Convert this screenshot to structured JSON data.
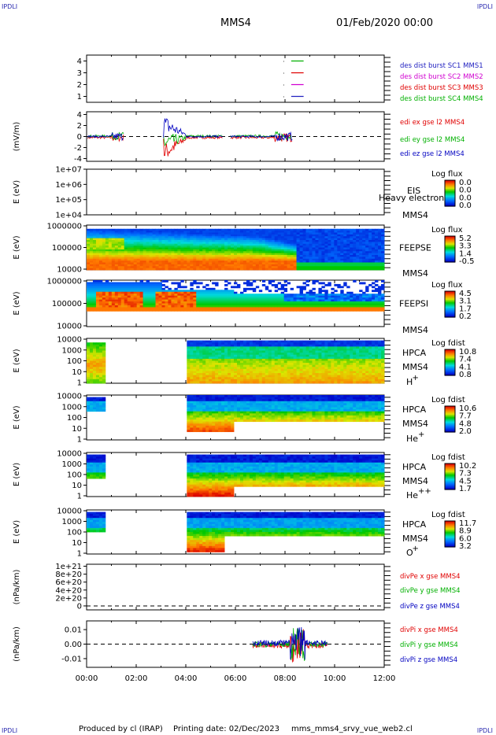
{
  "header": {
    "corner_left_top": "IPDLI",
    "corner_right_top": "IPDLI",
    "corner_left_bottom": "IPDLI",
    "corner_right_bottom": "IPDLI",
    "title": "MMS4",
    "date": "01/Feb/2020 00:00"
  },
  "footer": {
    "producer": "Produced by cl (IRAP)",
    "printing": "Printing date: 02/Dec/2023",
    "script": "mms_mms4_srvy_vue_web2.cl"
  },
  "colors": {
    "red": "#e00000",
    "green": "#00c000",
    "blue": "#0000c0",
    "magenta": "#d000d0",
    "green_legend": "#00b000",
    "purple": "#8000c0"
  },
  "chart_data": [
    {
      "type": "line",
      "panel": "burst",
      "yticks": [
        "4",
        "3",
        "2",
        "1"
      ],
      "ylim": [
        0.5,
        4.5
      ],
      "legend": [
        {
          "label": "des dist burst SC1 MMS1",
          "color": "#2020c0"
        },
        {
          "label": "des dist burst SC2 MMS2",
          "color": "#d000d0"
        },
        {
          "label": "des dist burst SC3 MMS3",
          "color": "#e00000"
        },
        {
          "label": "des dist burst SC4 MMS4",
          "color": "#00b000"
        }
      ],
      "series": [
        {
          "name": "des dist burst SC1 MMS1",
          "x": [
            "08:15",
            "08:45"
          ],
          "values": [
            1,
            1
          ]
        },
        {
          "name": "des dist burst SC2 MMS2",
          "x": [
            "08:15",
            "08:45"
          ],
          "values": [
            2,
            2
          ]
        },
        {
          "name": "des dist burst SC3 MMS3",
          "x": [
            "08:15",
            "08:45"
          ],
          "values": [
            3,
            3
          ]
        },
        {
          "name": "des dist burst SC4 MMS4",
          "x": [
            "08:15",
            "08:45"
          ],
          "values": [
            4,
            4
          ]
        }
      ]
    },
    {
      "type": "line",
      "panel": "efield",
      "ylabel": "(mV/m)",
      "yticks": [
        "4",
        "2",
        "0",
        "-2",
        "-4"
      ],
      "ylim": [
        -4.5,
        4.5
      ],
      "legend": [
        {
          "label": "edi ex gse l2 MMS4",
          "color": "#e00000"
        },
        {
          "label": "edi ey gse l2 MMS4",
          "color": "#00b000"
        },
        {
          "label": "edi ez gse l2 MMS4",
          "color": "#0000c0"
        }
      ]
    },
    {
      "type": "heatmap",
      "panel": "EIS",
      "ylabel": "E (eV)",
      "yticks": [
        "1e+07",
        "1e+06",
        "1e+05",
        "1e+04"
      ],
      "inst": "EIS",
      "sc": "MMS4",
      "extra": "Heavy electron to",
      "cb_title": "Log flux",
      "cb_ticks": [
        "0.0",
        "0.0",
        "0.0",
        "0.0"
      ]
    },
    {
      "type": "heatmap",
      "panel": "FEEPSE",
      "ylabel": "E (eV)",
      "yticks": [
        "1000000",
        "100000",
        "10000"
      ],
      "inst": "FEEPSE",
      "sc": "MMS4",
      "cb_title": "Log flux",
      "cb_ticks": [
        "5.2",
        "3.3",
        "1.4",
        "-0.5"
      ]
    },
    {
      "type": "heatmap",
      "panel": "FEEPSI",
      "ylabel": "E (eV)",
      "yticks": [
        "1000000",
        "100000",
        "10000"
      ],
      "inst": "FEEPSI",
      "sc": "MMS4",
      "cb_title": "Log flux",
      "cb_ticks": [
        "4.5",
        "3.1",
        "1.7",
        "0.2"
      ]
    },
    {
      "type": "heatmap",
      "panel": "HPCA-H",
      "ylabel": "E (eV)",
      "yticks": [
        "10000",
        "1000",
        "100",
        "10",
        "1"
      ],
      "inst": "HPCA",
      "sc": "MMS4",
      "species": "H",
      "charge": "+",
      "cb_title": "Log fdist",
      "cb_ticks": [
        "10.8",
        "7.4",
        "4.1",
        "0.8"
      ]
    },
    {
      "type": "heatmap",
      "panel": "HPCA-He+",
      "ylabel": "E (eV)",
      "yticks": [
        "10000",
        "1000",
        "100",
        "10",
        "1"
      ],
      "inst": "HPCA",
      "sc": "MMS4",
      "species": "He",
      "charge": "+",
      "cb_title": "Log fdist",
      "cb_ticks": [
        "10.6",
        "7.7",
        "4.8",
        "2.0"
      ]
    },
    {
      "type": "heatmap",
      "panel": "HPCA-He++",
      "ylabel": "E (eV)",
      "yticks": [
        "10000",
        "1000",
        "100",
        "10",
        "1"
      ],
      "inst": "HPCA",
      "sc": "MMS4",
      "species": "He",
      "charge": "++",
      "cb_title": "Log fdist",
      "cb_ticks": [
        "10.2",
        "7.3",
        "4.5",
        "1.7"
      ]
    },
    {
      "type": "heatmap",
      "panel": "HPCA-O+",
      "ylabel": "E (eV)",
      "yticks": [
        "10000",
        "1000",
        "100",
        "10",
        "1"
      ],
      "inst": "HPCA",
      "sc": "MMS4",
      "species": "O",
      "charge": "+",
      "cb_title": "Log fdist",
      "cb_ticks": [
        "11.7",
        "8.9",
        "6.0",
        "3.2"
      ]
    },
    {
      "type": "line",
      "panel": "divPe",
      "ylabel": "(nPa/km)",
      "yticks": [
        "1e+21",
        "8e+20",
        "6e+20",
        "4e+20",
        "2e+20",
        "0"
      ],
      "ylim": [
        -1e+20,
        1.05e+21
      ],
      "legend": [
        {
          "label": "divPe x gse MMS4",
          "color": "#e00000"
        },
        {
          "label": "divPe y gse MMS4",
          "color": "#00b000"
        },
        {
          "label": "divPe z gse MMS4",
          "color": "#0000c0"
        }
      ]
    },
    {
      "type": "line",
      "panel": "divPi",
      "ylabel": "(nPa/km)",
      "yticks": [
        "0.01",
        "0.00",
        "-0.01"
      ],
      "ylim": [
        -0.016,
        0.016
      ],
      "legend": [
        {
          "label": "divPi x gse MMS4",
          "color": "#e00000"
        },
        {
          "label": "divPi y gse MMS4",
          "color": "#00b000"
        },
        {
          "label": "divPi z gse MMS4",
          "color": "#0000c0"
        }
      ]
    }
  ],
  "xaxis": {
    "ticks": [
      "00:00",
      "02:00",
      "04:00",
      "06:00",
      "08:00",
      "10:00",
      "12:00"
    ],
    "range_hours": [
      0,
      12
    ]
  }
}
